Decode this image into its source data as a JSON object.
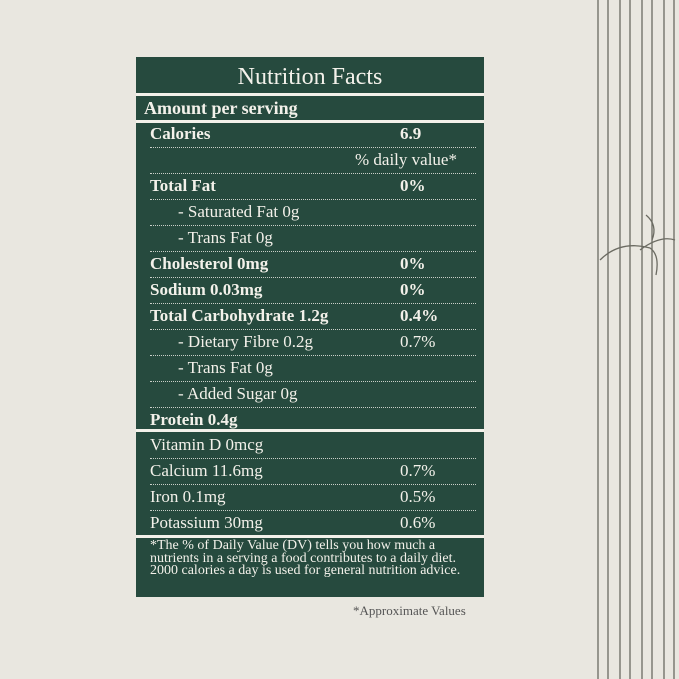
{
  "title": "Nutrition Facts",
  "amount_per_serving": "Amount per serving",
  "rows": [
    {
      "label": "Calories",
      "value": "6.9",
      "bold": true
    },
    {
      "label": "",
      "value": "% daily value*"
    },
    {
      "label": "Total Fat",
      "value": "0%",
      "bold": true
    },
    {
      "label": "- Saturated Fat 0g",
      "value": "",
      "indent": true
    },
    {
      "label": "- Trans Fat 0g",
      "value": "",
      "indent": true
    },
    {
      "label": "Cholesterol 0mg",
      "value": "0%",
      "bold": true
    },
    {
      "label": "Sodium 0.03mg",
      "value": "0%",
      "bold": true
    },
    {
      "label": "Total Carbohydrate 1.2g",
      "value": "0.4%",
      "bold": true
    },
    {
      "label": "- Dietary Fibre 0.2g",
      "value": "0.7%",
      "indent": true
    },
    {
      "label": "- Trans Fat 0g",
      "value": "",
      "indent": true
    },
    {
      "label": "- Added Sugar 0g",
      "value": "",
      "indent": true
    },
    {
      "label": "Protein 0.4g",
      "value": "",
      "bold": true
    }
  ],
  "vitamins": [
    {
      "label": "Vitamin D 0mcg",
      "value": ""
    },
    {
      "label": "Calcium 11.6mg",
      "value": "0.7%"
    },
    {
      "label": "Iron 0.1mg",
      "value": "0.5%"
    },
    {
      "label": "Potassium 30mg",
      "value": "0.6%"
    }
  ],
  "footnote": "*The % of Daily Value (DV) tells you how much a nutrients in a serving a food contributes to a daily diet. 2000 calories a day is used for general nutrition advice.",
  "approx_note": "*Approximate Values",
  "colors": {
    "panel": "#264a3e",
    "background": "#e9e7e0"
  }
}
